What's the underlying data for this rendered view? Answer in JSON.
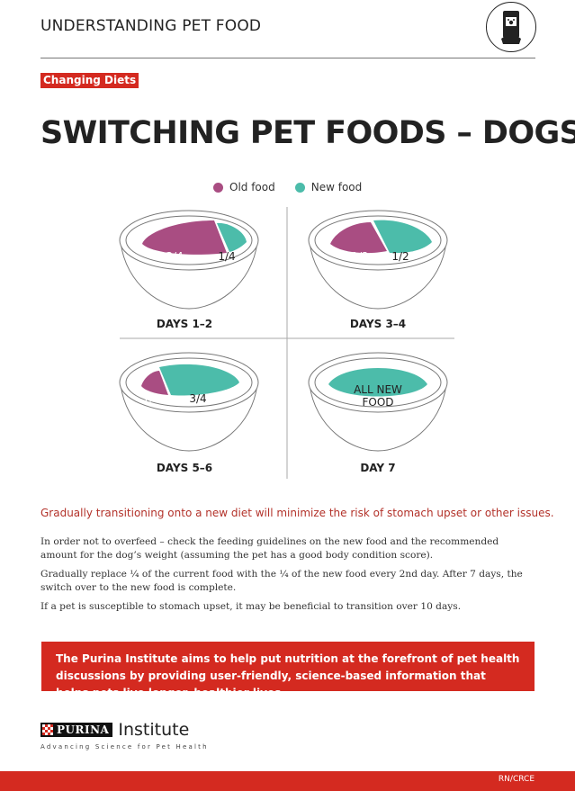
{
  "header": {
    "title": "UNDERSTANDING PET FOOD",
    "icon": "pet-food-bag-icon"
  },
  "tag": "Changing Diets",
  "title": "SWITCHING PET FOODS – DOGS",
  "legend": [
    {
      "label": "Old food",
      "color": "#a94d82"
    },
    {
      "label": "New food",
      "color": "#4cbcaa"
    }
  ],
  "stages": [
    {
      "label": "DAYS 1–2",
      "old": "3/4",
      "new": "1/4"
    },
    {
      "label": "DAYS 3–4",
      "old": "1/2",
      "new": "1/2"
    },
    {
      "label": "DAYS 5–6",
      "old": "1/4",
      "new": "3/4"
    },
    {
      "label": "DAY 7",
      "new": "ALL NEW FOOD"
    }
  ],
  "note": "Gradually transitioning onto a new diet will minimize the risk of stomach upset or other issues.",
  "paragraphs": [
    "In order not to overfeed – check the feeding guidelines on the new food and the recommended amount for the dog’s weight (assuming the pet has a good body condition score).",
    "Gradually replace ¼ of the current food with the ¼ of the new food every 2nd day. After 7 days, the switch over to the new food is complete.",
    "If a pet is susceptible to stomach upset, it may be beneficial to transition over 10 days."
  ],
  "banner": "The Purina Institute aims to help put nutrition at the forefront of pet health discussions by providing user-friendly, science-based information that helps pets live longer, healthier lives.",
  "logo": {
    "brand": "PURINA",
    "name": "Institute",
    "tagline": "Advancing Science for Pet Health"
  },
  "footer": {
    "code": "RN/CRCE"
  },
  "colors": {
    "accent": "#d42a20",
    "old_food": "#a94d82",
    "new_food": "#4cbcaa"
  }
}
